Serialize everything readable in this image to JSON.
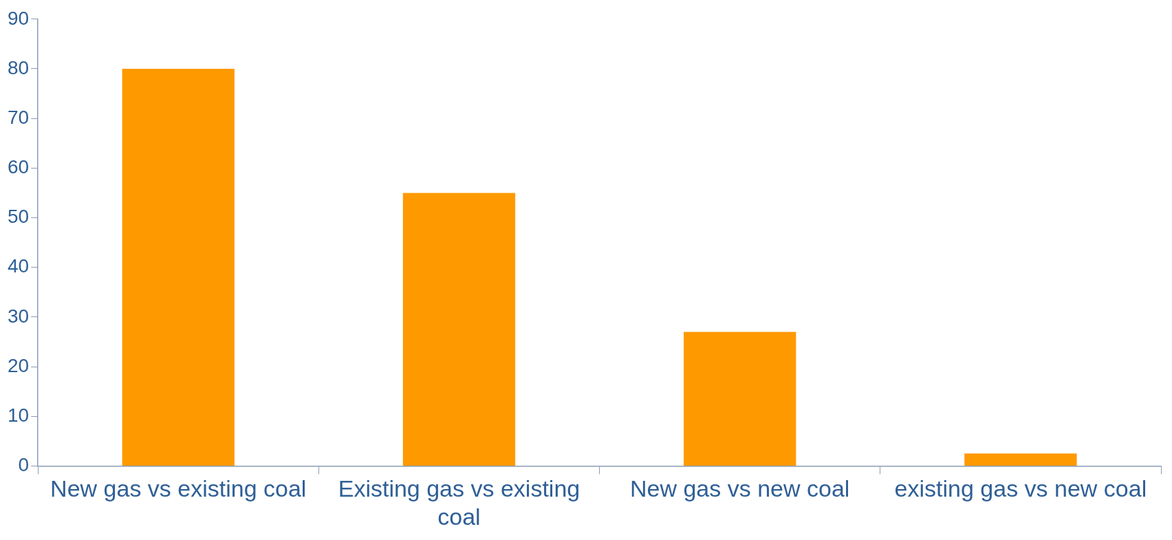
{
  "chart_data": {
    "type": "bar",
    "categories": [
      "New gas vs existing coal",
      "Existing gas vs existing coal",
      "New gas vs new coal",
      "existing gas vs new coal"
    ],
    "values": [
      80,
      55,
      27,
      2.5
    ],
    "color": "#ff9900",
    "ylim": [
      0,
      90
    ],
    "yticks": [
      0,
      10,
      20,
      30,
      40,
      50,
      60,
      70,
      80,
      90
    ],
    "grid": false,
    "legend": false
  }
}
